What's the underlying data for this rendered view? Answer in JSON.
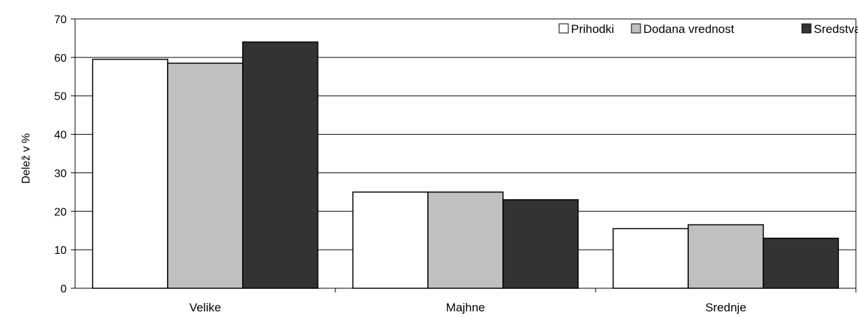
{
  "chart_data": {
    "type": "bar",
    "ylabel": "Delež v %",
    "xlabel": "",
    "ylim": [
      0,
      70
    ],
    "yticks": [
      0,
      10,
      20,
      30,
      40,
      50,
      60,
      70
    ],
    "grid": true,
    "legend_position": "top-right",
    "categories": [
      "Velike",
      "Majhne",
      "Srednje"
    ],
    "series": [
      {
        "name": "Prihodki",
        "color": "#ffffff",
        "values": [
          59.5,
          25.0,
          15.5
        ]
      },
      {
        "name": "Dodana vrednost",
        "color": "#c0c0c0",
        "values": [
          58.5,
          25.0,
          16.5
        ]
      },
      {
        "name": "Sredstva",
        "color": "#333333",
        "values": [
          64.0,
          23.0,
          13.0
        ]
      }
    ]
  }
}
